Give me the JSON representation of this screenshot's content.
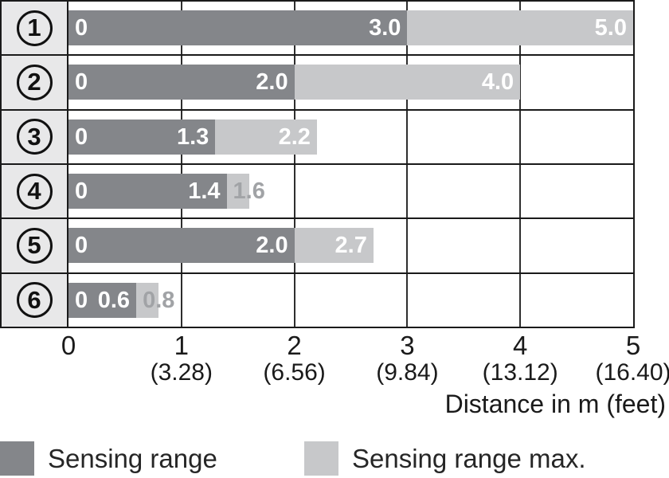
{
  "colors": {
    "bar_dark": "#84868a",
    "bar_light": "#c7c8ca",
    "label_col_bg": "#e8e8e9",
    "grid_line": "#2e2e2e",
    "border": "#1a1a1a",
    "overflow_label": "#a1a3a6",
    "axis_text": "#1a1a1a"
  },
  "chart_data": {
    "type": "bar",
    "orientation": "horizontal",
    "xlabel": "Distance in m (feet)",
    "xlim": [
      0,
      5
    ],
    "grid": true,
    "legend_position": "bottom",
    "categories": [
      "1",
      "2",
      "3",
      "4",
      "5",
      "6"
    ],
    "series": [
      {
        "name": "Sensing range",
        "values": [
          3.0,
          2.0,
          1.3,
          1.4,
          2.0,
          0.6
        ]
      },
      {
        "name": "Sensing range max.",
        "values": [
          5.0,
          4.0,
          2.2,
          1.6,
          2.7,
          0.8
        ]
      }
    ],
    "rows": [
      {
        "digit": "1",
        "zero_label": "0",
        "sensing": 3.0,
        "sensing_label": "3.0",
        "max": 5.0,
        "max_label": "5.0",
        "max_label_placement": "inside"
      },
      {
        "digit": "2",
        "zero_label": "0",
        "sensing": 2.0,
        "sensing_label": "2.0",
        "max": 4.0,
        "max_label": "4.0",
        "max_label_placement": "inside"
      },
      {
        "digit": "3",
        "zero_label": "0",
        "sensing": 1.3,
        "sensing_label": "1.3",
        "max": 2.2,
        "max_label": "2.2",
        "max_label_placement": "inside"
      },
      {
        "digit": "4",
        "zero_label": "0",
        "sensing": 1.4,
        "sensing_label": "1.4",
        "max": 1.6,
        "max_label": "1.6",
        "max_label_placement": "overflow"
      },
      {
        "digit": "5",
        "zero_label": "0",
        "sensing": 2.0,
        "sensing_label": "2.0",
        "max": 2.7,
        "max_label": "2.7",
        "max_label_placement": "inside"
      },
      {
        "digit": "6",
        "zero_label": "0",
        "sensing": 0.6,
        "sensing_label": "0.6",
        "max": 0.8,
        "max_label": "0.8",
        "max_label_placement": "overflow"
      }
    ],
    "x_ticks": [
      {
        "m": "0",
        "feet": ""
      },
      {
        "m": "1",
        "feet": "(3.28)"
      },
      {
        "m": "2",
        "feet": "(6.56)"
      },
      {
        "m": "3",
        "feet": "(9.84)"
      },
      {
        "m": "4",
        "feet": "(13.12)"
      },
      {
        "m": "5",
        "feet": "(16.40)"
      }
    ],
    "legend": [
      {
        "label": "Sensing range",
        "color": "#84868a"
      },
      {
        "label": "Sensing range max.",
        "color": "#c7c8ca"
      }
    ]
  }
}
